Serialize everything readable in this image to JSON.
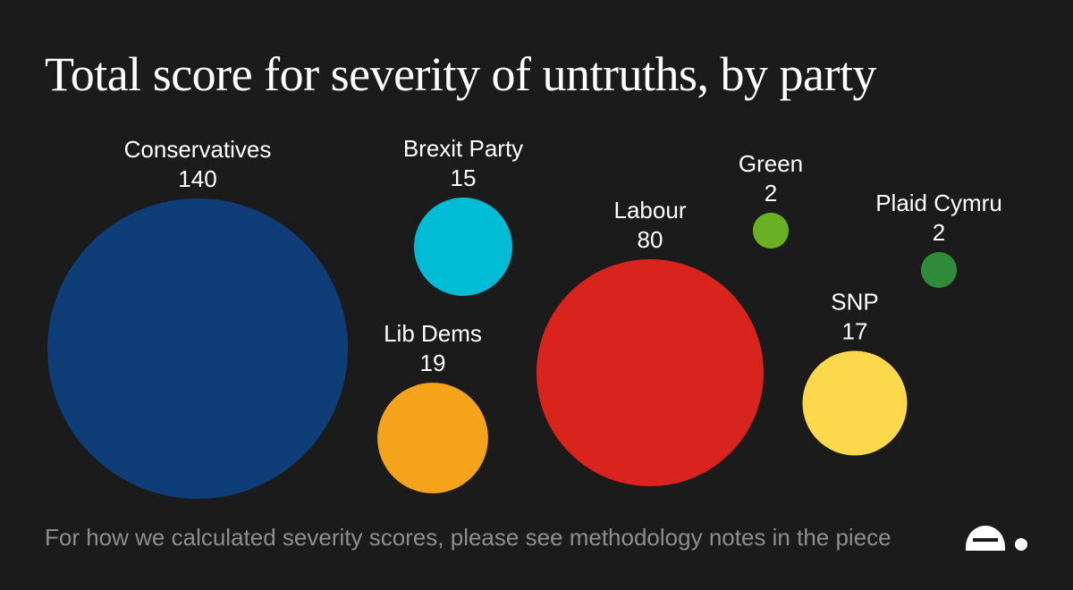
{
  "title": "Total score for severity of untruths, by party",
  "footnote": "For how we calculated severity scores, please see methodology notes in the piece",
  "logo_icon": "publisher-logo-icon",
  "chart_data": {
    "type": "bubble",
    "title": "Total score for severity of untruths, by party",
    "series": [
      {
        "name": "Conservatives",
        "value": 140,
        "color": "#0f3d77"
      },
      {
        "name": "Brexit Party",
        "value": 15,
        "color": "#00bcd4"
      },
      {
        "name": "Lib Dems",
        "value": 19,
        "color": "#f5a31b"
      },
      {
        "name": "Labour",
        "value": 80,
        "color": "#d9241e"
      },
      {
        "name": "Green",
        "value": 2,
        "color": "#6ab023"
      },
      {
        "name": "Plaid Cymru",
        "value": 2,
        "color": "#2e8b3a"
      },
      {
        "name": "SNP",
        "value": 17,
        "color": "#fcd94c"
      }
    ]
  }
}
